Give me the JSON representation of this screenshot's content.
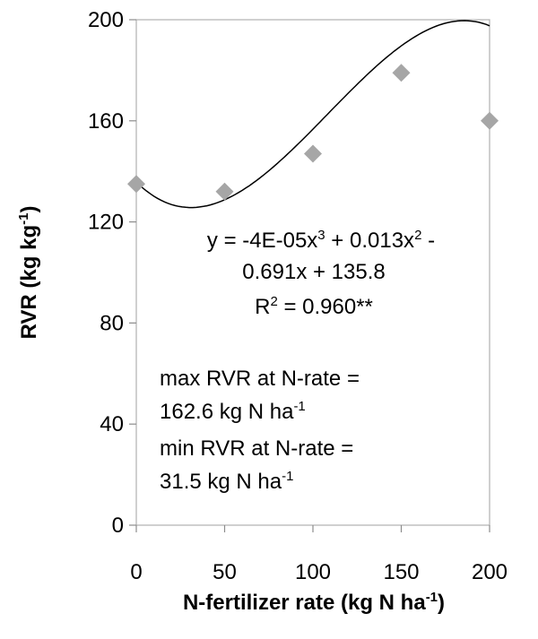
{
  "chart_data": {
    "type": "scatter",
    "title": "",
    "xlabel": "N-fertilizer rate (kg N ha",
    "xlabel_sup": "-1",
    "xlabel_end": ")",
    "ylabel": "RVR (kg kg",
    "ylabel_sup": "-1",
    "ylabel_end": ")",
    "xlim": [
      0,
      200
    ],
    "ylim": [
      0,
      200
    ],
    "x_ticks": [
      "0",
      "50",
      "100",
      "150",
      "200"
    ],
    "y_ticks": [
      "0",
      "40",
      "80",
      "120",
      "160",
      "200"
    ],
    "grid": false,
    "marker": "diamond",
    "marker_color": "#a6a6a6",
    "series": [
      {
        "x": [
          0,
          50,
          100,
          150,
          200
        ],
        "y": [
          135,
          132,
          147,
          179,
          160
        ]
      }
    ],
    "trendline": {
      "type": "polynomial",
      "coefficients": {
        "a3": -4e-05,
        "a2": 0.013,
        "a1": -0.691,
        "a0": 135.8
      }
    },
    "annotations": {
      "eq_line1_a": "y = -4E-05x",
      "eq_line1_sup1": "3",
      "eq_line1_b": " + 0.013x",
      "eq_line1_sup2": "2",
      "eq_line1_c": " -",
      "eq_line2": "0.691x + 135.8",
      "r2_a": "R",
      "r2_sup": "2",
      "r2_b": " = 0.960**",
      "max_line1": "max RVR at N-rate =",
      "max_line2": "162.6 kg N ha",
      "max_sup": "-1",
      "min_line1": "min RVR at N-rate =",
      "min_line2": "31.5 kg N ha",
      "min_sup": "-1"
    }
  }
}
